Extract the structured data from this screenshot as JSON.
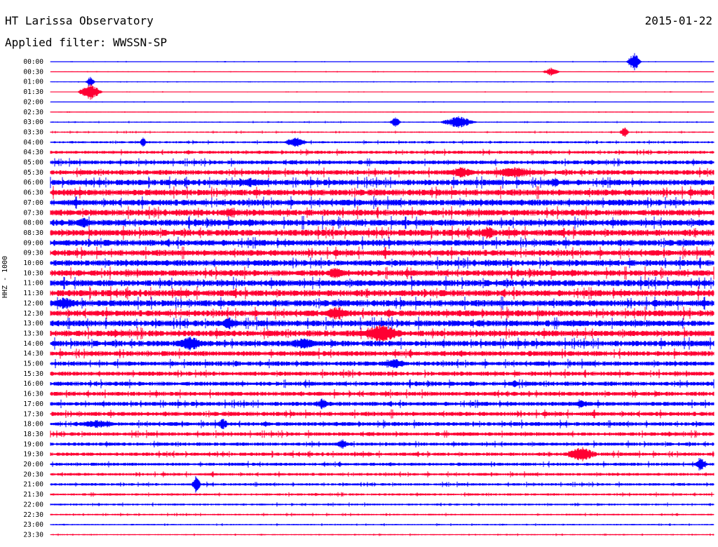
{
  "header": {
    "station": "HT Larissa Observatory",
    "date": "2015-01-22",
    "filter": "Applied filter: WWSSN-SP"
  },
  "chart_data": {
    "type": "line",
    "title": "HT Larissa Observatory",
    "ylabel": "HHZ - 1000",
    "colors": {
      "even": "#0000ff",
      "odd": "#ff0033"
    },
    "rows": [
      {
        "label": "00:00",
        "amp": 0.5
      },
      {
        "label": "00:30",
        "amp": 0.5
      },
      {
        "label": "01:00",
        "amp": 0.5
      },
      {
        "label": "01:30",
        "amp": 0.5
      },
      {
        "label": "02:00",
        "amp": 0.5
      },
      {
        "label": "02:30",
        "amp": 0.6
      },
      {
        "label": "03:00",
        "amp": 0.8
      },
      {
        "label": "03:30",
        "amp": 1.0
      },
      {
        "label": "04:00",
        "amp": 1.5
      },
      {
        "label": "04:30",
        "amp": 2.2
      },
      {
        "label": "05:00",
        "amp": 2.8
      },
      {
        "label": "05:30",
        "amp": 3.4
      },
      {
        "label": "06:00",
        "amp": 4.0
      },
      {
        "label": "06:30",
        "amp": 4.3
      },
      {
        "label": "07:00",
        "amp": 4.3
      },
      {
        "label": "07:30",
        "amp": 4.3
      },
      {
        "label": "08:00",
        "amp": 4.5
      },
      {
        "label": "08:30",
        "amp": 4.5
      },
      {
        "label": "09:00",
        "amp": 4.3
      },
      {
        "label": "09:30",
        "amp": 4.2
      },
      {
        "label": "10:00",
        "amp": 4.2
      },
      {
        "label": "10:30",
        "amp": 4.3
      },
      {
        "label": "11:00",
        "amp": 4.5
      },
      {
        "label": "11:30",
        "amp": 4.5
      },
      {
        "label": "12:00",
        "amp": 4.5
      },
      {
        "label": "12:30",
        "amp": 4.3
      },
      {
        "label": "13:00",
        "amp": 4.3
      },
      {
        "label": "13:30",
        "amp": 4.2
      },
      {
        "label": "14:00",
        "amp": 4.0
      },
      {
        "label": "14:30",
        "amp": 3.6
      },
      {
        "label": "15:00",
        "amp": 3.2
      },
      {
        "label": "15:30",
        "amp": 3.0
      },
      {
        "label": "16:00",
        "amp": 3.0
      },
      {
        "label": "16:30",
        "amp": 3.0
      },
      {
        "label": "17:00",
        "amp": 3.0
      },
      {
        "label": "17:30",
        "amp": 3.0
      },
      {
        "label": "18:00",
        "amp": 2.8
      },
      {
        "label": "18:30",
        "amp": 2.6
      },
      {
        "label": "19:00",
        "amp": 2.4
      },
      {
        "label": "19:30",
        "amp": 2.4
      },
      {
        "label": "20:00",
        "amp": 2.2
      },
      {
        "label": "20:30",
        "amp": 2.0
      },
      {
        "label": "21:00",
        "amp": 1.8
      },
      {
        "label": "21:30",
        "amp": 1.6
      },
      {
        "label": "22:00",
        "amp": 1.4
      },
      {
        "label": "22:30",
        "amp": 1.2
      },
      {
        "label": "23:00",
        "amp": 1.0
      },
      {
        "label": "23:30",
        "amp": 0.9
      }
    ],
    "events": [
      {
        "row": 0,
        "x": 0.88,
        "amp": 14,
        "width": 0.012
      },
      {
        "row": 1,
        "x": 0.755,
        "amp": 6,
        "width": 0.015
      },
      {
        "row": 2,
        "x": 0.06,
        "amp": 8,
        "width": 0.008
      },
      {
        "row": 3,
        "x": 0.06,
        "amp": 12,
        "width": 0.02
      },
      {
        "row": 6,
        "x": 0.52,
        "amp": 8,
        "width": 0.01
      },
      {
        "row": 6,
        "x": 0.615,
        "amp": 9,
        "width": 0.03
      },
      {
        "row": 7,
        "x": 0.865,
        "amp": 9,
        "width": 0.008
      },
      {
        "row": 8,
        "x": 0.37,
        "amp": 9,
        "width": 0.02
      },
      {
        "row": 8,
        "x": 0.14,
        "amp": 8,
        "width": 0.006
      },
      {
        "row": 11,
        "x": 0.62,
        "amp": 8,
        "width": 0.03
      },
      {
        "row": 11,
        "x": 0.7,
        "amp": 8,
        "width": 0.05
      },
      {
        "row": 12,
        "x": 0.3,
        "amp": 7,
        "width": 0.05
      },
      {
        "row": 12,
        "x": 0.76,
        "amp": 8,
        "width": 0.01
      },
      {
        "row": 15,
        "x": 0.27,
        "amp": 8,
        "width": 0.02
      },
      {
        "row": 16,
        "x": 0.05,
        "amp": 8,
        "width": 0.02
      },
      {
        "row": 17,
        "x": 0.66,
        "amp": 9,
        "width": 0.02
      },
      {
        "row": 21,
        "x": 0.43,
        "amp": 9,
        "width": 0.02
      },
      {
        "row": 24,
        "x": 0.02,
        "amp": 9,
        "width": 0.03
      },
      {
        "row": 25,
        "x": 0.43,
        "amp": 10,
        "width": 0.03
      },
      {
        "row": 26,
        "x": 0.27,
        "amp": 9,
        "width": 0.02
      },
      {
        "row": 27,
        "x": 0.5,
        "amp": 14,
        "width": 0.04
      },
      {
        "row": 28,
        "x": 0.21,
        "amp": 11,
        "width": 0.03
      },
      {
        "row": 28,
        "x": 0.38,
        "amp": 9,
        "width": 0.03
      },
      {
        "row": 30,
        "x": 0.52,
        "amp": 7,
        "width": 0.03
      },
      {
        "row": 32,
        "x": 0.7,
        "amp": 8,
        "width": 0.008
      },
      {
        "row": 34,
        "x": 0.41,
        "amp": 9,
        "width": 0.01
      },
      {
        "row": 34,
        "x": 0.8,
        "amp": 6,
        "width": 0.02
      },
      {
        "row": 36,
        "x": 0.07,
        "amp": 6,
        "width": 0.04
      },
      {
        "row": 36,
        "x": 0.26,
        "amp": 9,
        "width": 0.01
      },
      {
        "row": 38,
        "x": 0.44,
        "amp": 9,
        "width": 0.01
      },
      {
        "row": 39,
        "x": 0.8,
        "amp": 11,
        "width": 0.03
      },
      {
        "row": 40,
        "x": 0.98,
        "amp": 12,
        "width": 0.01
      },
      {
        "row": 42,
        "x": 0.22,
        "amp": 14,
        "width": 0.008
      }
    ]
  }
}
